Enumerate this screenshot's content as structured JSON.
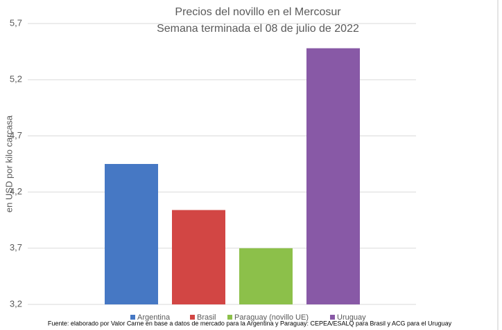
{
  "chart_data": {
    "type": "bar",
    "title": "Precios del novillo en el Mercosur",
    "subtitle": "Semana terminada el 08 de julio de 2022",
    "y_label": "en USD por kilo carcasa",
    "categories": [
      "Argentina",
      "Brasil",
      "Paraguay (novillo UE)",
      "Uruguay"
    ],
    "values": [
      4.45,
      4.04,
      3.7,
      5.48
    ],
    "colors": [
      "#4678c4",
      "#d24644",
      "#8cc04a",
      "#8859a6"
    ],
    "ylim": [
      3.2,
      5.7
    ],
    "yticks": [
      {
        "value": 3.2,
        "label": "3,2"
      },
      {
        "value": 3.7,
        "label": "3,7"
      },
      {
        "value": 4.2,
        "label": "4,2"
      },
      {
        "value": 4.7,
        "label": "4,7"
      },
      {
        "value": 5.2,
        "label": "5,2"
      },
      {
        "value": 5.7,
        "label": "5,7"
      }
    ],
    "grid": true,
    "legend": "bottom",
    "source": "Fuente: elaborado por Valor Carne en base a datos de mercado para la Argentina y Paraguay: CEPEA/ESALQ para Brasil y ACG para el Uruguay"
  }
}
